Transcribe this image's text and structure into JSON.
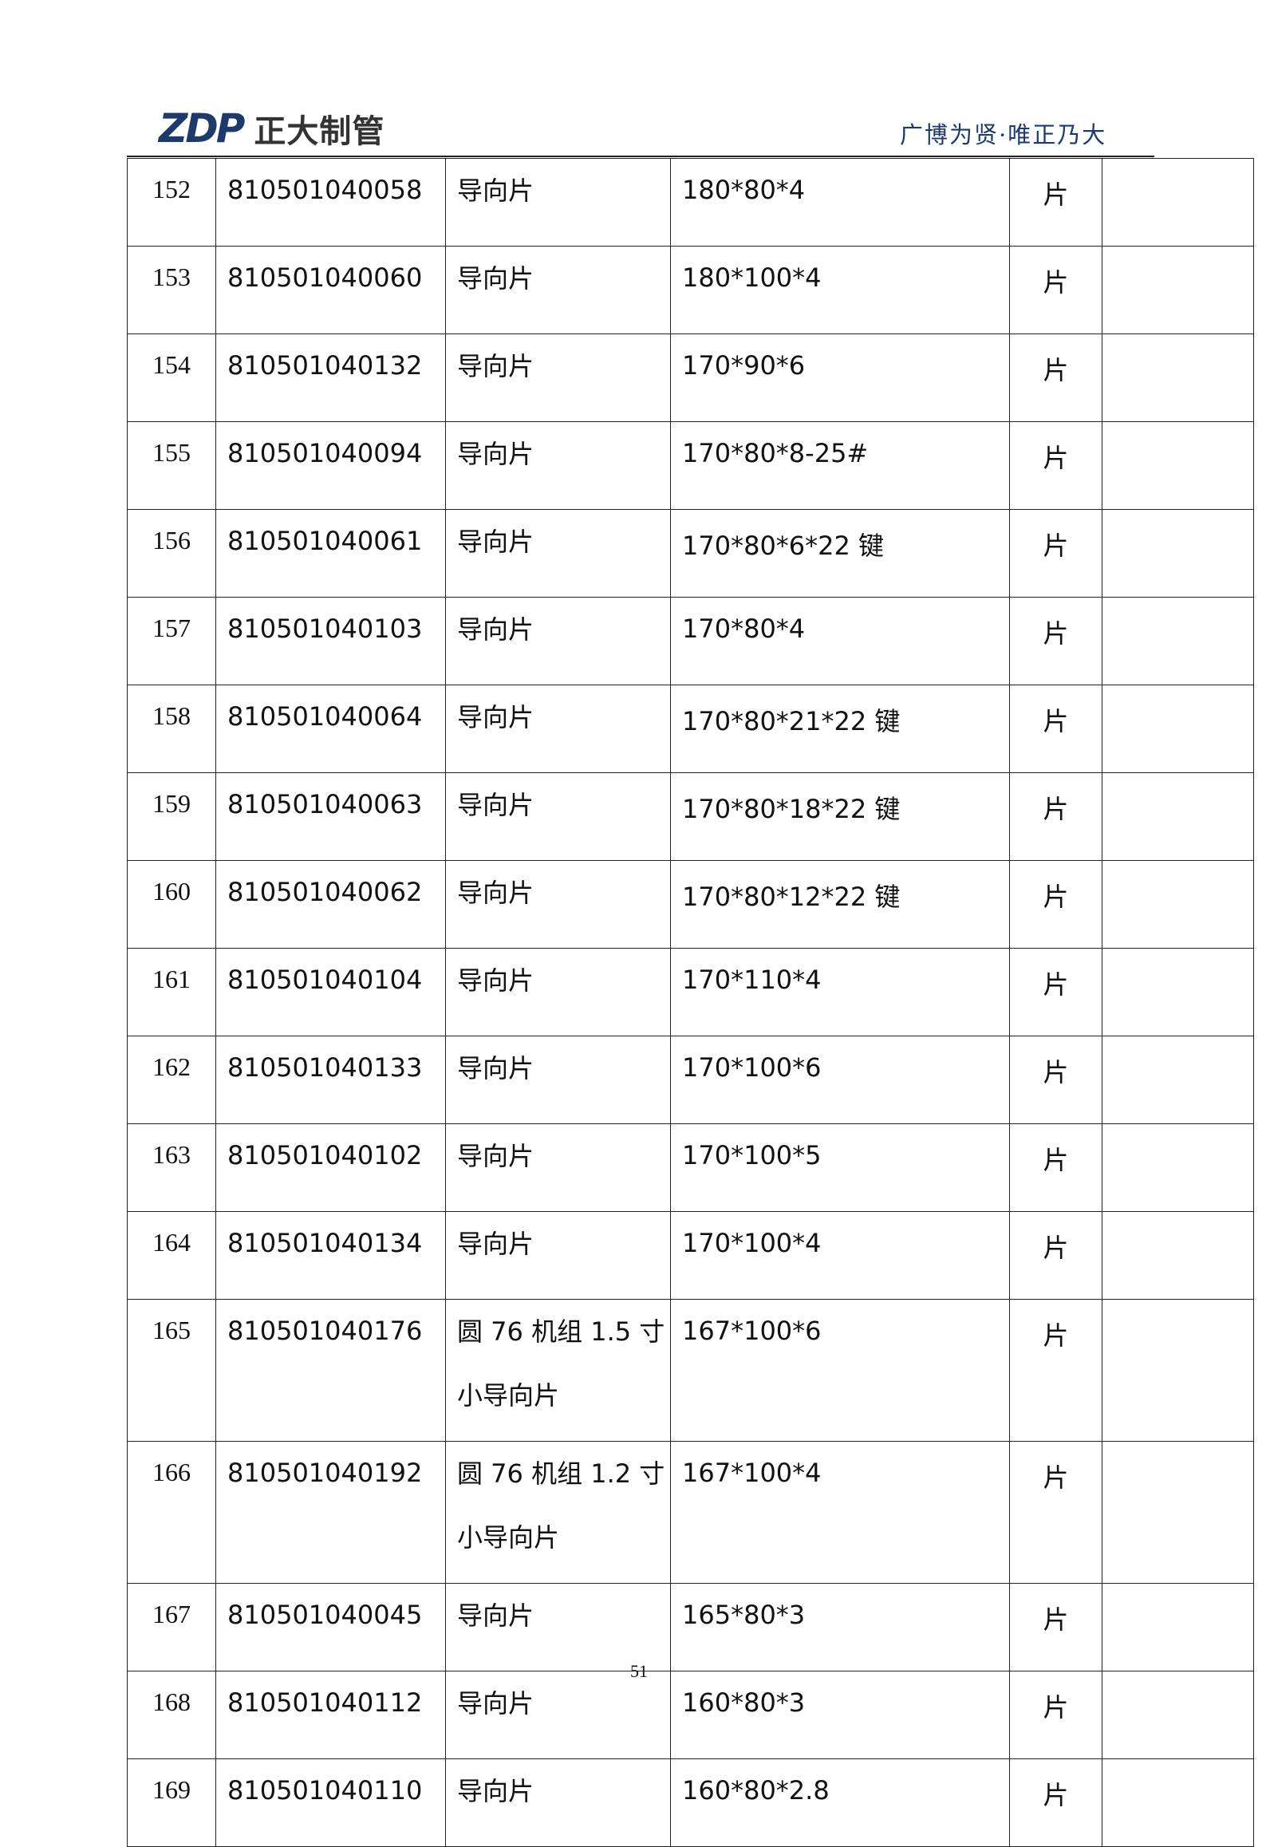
{
  "header": {
    "logo_mark": "ZDP",
    "logo_text": "正大制管",
    "slogan": "广博为贤·唯正乃大"
  },
  "rows": [
    {
      "no": "152",
      "code": "810501040058",
      "name": "导向片",
      "spec": "180*80*4",
      "unit": "片",
      "note": ""
    },
    {
      "no": "153",
      "code": "810501040060",
      "name": "导向片",
      "spec": "180*100*4",
      "unit": "片",
      "note": ""
    },
    {
      "no": "154",
      "code": "810501040132",
      "name": "导向片",
      "spec": "170*90*6",
      "unit": "片",
      "note": ""
    },
    {
      "no": "155",
      "code": "810501040094",
      "name": "导向片",
      "spec": "170*80*8-25#",
      "unit": "片",
      "note": ""
    },
    {
      "no": "156",
      "code": "810501040061",
      "name": "导向片",
      "spec": "170*80*6*22 键",
      "unit": "片",
      "note": ""
    },
    {
      "no": "157",
      "code": "810501040103",
      "name": "导向片",
      "spec": "170*80*4",
      "unit": "片",
      "note": ""
    },
    {
      "no": "158",
      "code": "810501040064",
      "name": "导向片",
      "spec": "170*80*21*22 键",
      "unit": "片",
      "note": ""
    },
    {
      "no": "159",
      "code": "810501040063",
      "name": "导向片",
      "spec": "170*80*18*22 键",
      "unit": "片",
      "note": ""
    },
    {
      "no": "160",
      "code": "810501040062",
      "name": "导向片",
      "spec": "170*80*12*22 键",
      "unit": "片",
      "note": ""
    },
    {
      "no": "161",
      "code": "810501040104",
      "name": "导向片",
      "spec": "170*110*4",
      "unit": "片",
      "note": ""
    },
    {
      "no": "162",
      "code": "810501040133",
      "name": "导向片",
      "spec": "170*100*6",
      "unit": "片",
      "note": ""
    },
    {
      "no": "163",
      "code": "810501040102",
      "name": "导向片",
      "spec": "170*100*5",
      "unit": "片",
      "note": ""
    },
    {
      "no": "164",
      "code": "810501040134",
      "name": "导向片",
      "spec": "170*100*4",
      "unit": "片",
      "note": ""
    },
    {
      "no": "165",
      "code": "810501040176",
      "name": "圆 76 机组 1.5 寸小导向片",
      "spec": "167*100*6",
      "unit": "片",
      "note": ""
    },
    {
      "no": "166",
      "code": "810501040192",
      "name": "圆 76 机组 1.2 寸小导向片",
      "spec": "167*100*4",
      "unit": "片",
      "note": ""
    },
    {
      "no": "167",
      "code": "810501040045",
      "name": "导向片",
      "spec": "165*80*3",
      "unit": "片",
      "note": ""
    },
    {
      "no": "168",
      "code": "810501040112",
      "name": "导向片",
      "spec": "160*80*3",
      "unit": "片",
      "note": ""
    },
    {
      "no": "169",
      "code": "810501040110",
      "name": "导向片",
      "spec": "160*80*2.8",
      "unit": "片",
      "note": ""
    }
  ],
  "footer": {
    "page_number": "51"
  }
}
